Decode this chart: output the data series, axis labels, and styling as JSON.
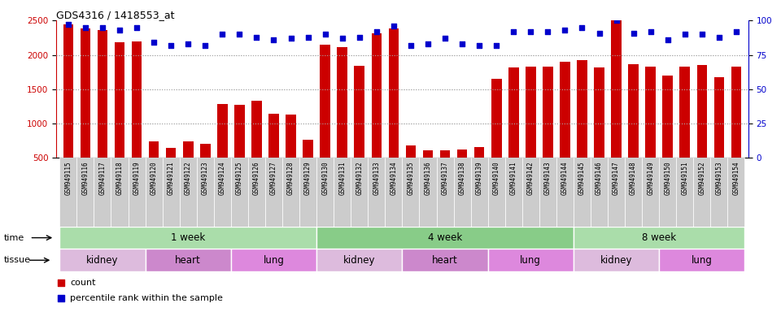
{
  "title": "GDS4316 / 1418553_at",
  "samples": [
    "GSM949115",
    "GSM949116",
    "GSM949117",
    "GSM949118",
    "GSM949119",
    "GSM949120",
    "GSM949121",
    "GSM949122",
    "GSM949123",
    "GSM949124",
    "GSM949125",
    "GSM949126",
    "GSM949127",
    "GSM949128",
    "GSM949129",
    "GSM949130",
    "GSM949131",
    "GSM949132",
    "GSM949133",
    "GSM949134",
    "GSM949135",
    "GSM949136",
    "GSM949137",
    "GSM949138",
    "GSM949139",
    "GSM949140",
    "GSM949141",
    "GSM949142",
    "GSM949143",
    "GSM949144",
    "GSM949145",
    "GSM949146",
    "GSM949147",
    "GSM949148",
    "GSM949149",
    "GSM949150",
    "GSM949151",
    "GSM949152",
    "GSM949153",
    "GSM949154"
  ],
  "counts": [
    2440,
    2380,
    2360,
    2190,
    2200,
    740,
    650,
    740,
    700,
    1280,
    1270,
    1330,
    1140,
    1130,
    760,
    2150,
    2110,
    1840,
    2310,
    2390,
    680,
    615,
    615,
    620,
    660,
    1650,
    1820,
    1830,
    1830,
    1900,
    1920,
    1820,
    2500,
    1870,
    1830,
    1700,
    1830,
    1850,
    1680,
    1830
  ],
  "percentile": [
    97,
    95,
    95,
    93,
    95,
    84,
    82,
    83,
    82,
    90,
    90,
    88,
    86,
    87,
    88,
    90,
    87,
    88,
    92,
    96,
    82,
    83,
    87,
    83,
    82,
    82,
    92,
    92,
    92,
    93,
    95,
    91,
    100,
    91,
    92,
    86,
    90,
    90,
    88,
    92
  ],
  "ylim_left": [
    500,
    2500
  ],
  "ylim_right": [
    0,
    100
  ],
  "bar_color": "#cc0000",
  "dot_color": "#0000cc",
  "grid_color": "#aaaaaa",
  "time_groups": [
    {
      "label": "1 week",
      "start": 0,
      "end": 15,
      "color": "#aaddaa"
    },
    {
      "label": "4 week",
      "start": 15,
      "end": 30,
      "color": "#88cc88"
    },
    {
      "label": "8 week",
      "start": 30,
      "end": 40,
      "color": "#aaddaa"
    }
  ],
  "tissue_groups": [
    {
      "label": "kidney",
      "start": 0,
      "end": 5,
      "color": "#ddbbdd"
    },
    {
      "label": "heart",
      "start": 5,
      "end": 10,
      "color": "#cc88cc"
    },
    {
      "label": "lung",
      "start": 10,
      "end": 15,
      "color": "#dd88dd"
    },
    {
      "label": "kidney",
      "start": 15,
      "end": 20,
      "color": "#ddbbdd"
    },
    {
      "label": "heart",
      "start": 20,
      "end": 25,
      "color": "#cc88cc"
    },
    {
      "label": "lung",
      "start": 25,
      "end": 30,
      "color": "#dd88dd"
    },
    {
      "label": "kidney",
      "start": 30,
      "end": 35,
      "color": "#ddbbdd"
    },
    {
      "label": "lung",
      "start": 35,
      "end": 40,
      "color": "#dd88dd"
    }
  ],
  "left_tick_color": "#cc0000",
  "right_tick_color": "#0000cc",
  "background_color": "#ffffff"
}
